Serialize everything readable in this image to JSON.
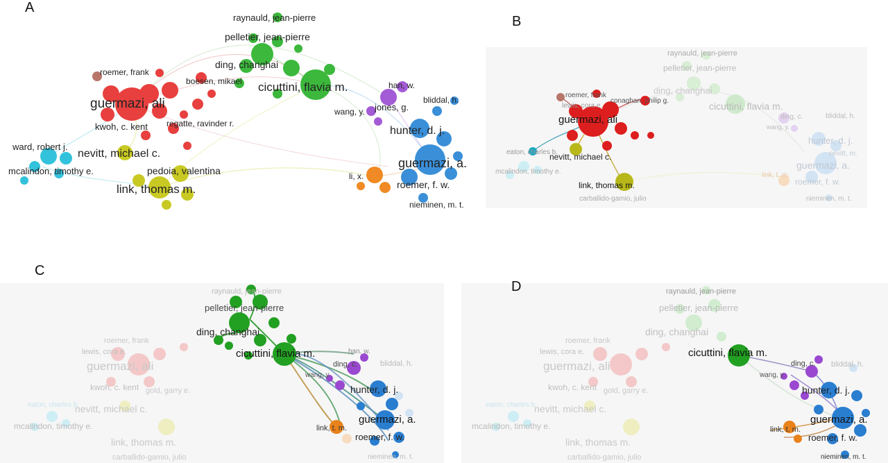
{
  "colors": {
    "red": "#e8403e",
    "green": "#3cb83c",
    "blue": "#3a8fd8",
    "yellow": "#c9c924",
    "cyan": "#33c2dc",
    "purple": "#a35bd6",
    "orange": "#f08a24",
    "brown": "#b8766a",
    "bg_faded": "#f5f5f5"
  },
  "panels": [
    {
      "letter": "A",
      "labels": {
        "raynauld": "raynauld, jean-pierre",
        "pelletier": "pelletier, jean-pierre",
        "ding": "ding, changhai",
        "cicuttini": "cicuttini, flavia m.",
        "roemer_frank": "roemer, frank",
        "boesen": "boesen, mikael",
        "guermazi_ali": "guermazi, ali",
        "kwoh": "kwoh, c. kent",
        "regatte": "regatte, ravinder r.",
        "ward": "ward, robert j.",
        "nevitt": "nevitt, michael c.",
        "mcalindon": "mcalindon, timothy e.",
        "pedoia": "pedoia, valentina",
        "link_thomas": "link, thomas m.",
        "han": "han, w.",
        "bliddal": "bliddal, h.",
        "jones": "jones, g.",
        "wang": "wang, y.",
        "hunter": "hunter, d. j.",
        "guermazi_a": "guermazi, a.",
        "li": "li, x.",
        "roemer_fw": "roemer, f. w.",
        "nieminen": "nieminen, m. t."
      }
    },
    {
      "letter": "B",
      "labels": {
        "raynauld": "raynauld, jean-pierre",
        "pelletier": "pelletier, jean-pierre",
        "ding": "ding, changhai",
        "cicuttini": "cicuttini, flavia m.",
        "roemer_frank": "roemer, frank",
        "conaghan": "conaghan, philip g.",
        "lewis": "lewis, cora e.",
        "guermazi_ali": "guermazi, ali",
        "eaton": "eaton, charles b.",
        "nevitt": "nevitt, michael c.",
        "mcalindon": "mcalindon, timothy e.",
        "link_thomas": "link, thomas m.",
        "carballido": "carballido-gamio, julio",
        "ding_c": "ding, c.",
        "bliddal": "bliddal, h.",
        "wang": "wang, y.",
        "hunter": "hunter, d. j.",
        "nevitt_m": "nevitt, m.",
        "guermazi_a": "guermazi, a.",
        "link_tm": "link, t. m.",
        "roemer_fw": "roemer, f. w.",
        "nieminen": "nieminen, m. t."
      }
    },
    {
      "letter": "C",
      "labels": {
        "raynauld": "raynauld, jean-pierre",
        "pelletier": "pelletier, jean-pierre",
        "ding": "ding, changhai",
        "cicuttini": "cicuttini, flavia m.",
        "roemer_frank": "roemer, frank",
        "lewis": "lewis, cora e.",
        "guermazi_ali": "guermazi, ali",
        "kwoh": "kwoh, c. kent",
        "gold": "gold, garry e.",
        "eaton": "eaton, charles b.",
        "nevitt": "nevitt, michael c.",
        "mcalindon": "mcalindon, timothy e.",
        "link_thomas": "link, thomas m.",
        "carballido": "carballido-gamio, julio",
        "han": "han, w.",
        "ding_c": "ding, c.",
        "bliddal": "bliddal, h.",
        "wang": "wang, y.",
        "hunter": "hunter, d. j.",
        "guermazi_a": "guermazi, a.",
        "link_tm": "link, t. m.",
        "roemer_fw": "roemer, f. w.",
        "nieminen": "nieminen, m. t."
      }
    },
    {
      "letter": "D",
      "labels": {
        "raynauld": "raynauld, jean-pierre",
        "pelletier": "pelletier, jean-pierre",
        "ding": "ding, changhai",
        "cicuttini": "cicuttini, flavia m.",
        "roemer_frank": "roemer, frank",
        "lewis": "lewis, cora e.",
        "guermazi_ali": "guermazi, ali",
        "kwoh": "kwoh, c. kent",
        "gold": "gold, garry e.",
        "eaton": "eaton, charles b.",
        "nevitt": "nevitt, michael c.",
        "mcalindon": "mcalindon, timothy e.",
        "link_thomas": "link, thomas m.",
        "carballido": "carballido-gamio, julio",
        "ding_c": "ding, c.",
        "bliddal": "bliddal, h.",
        "wang": "wang, y.",
        "hunter": "hunter, d. j.",
        "guermazi_a": "guermazi, a.",
        "link_tm": "link, t. m.",
        "roemer_fw": "roemer, f. w.",
        "nieminen": "nieminen, m. t."
      }
    }
  ]
}
